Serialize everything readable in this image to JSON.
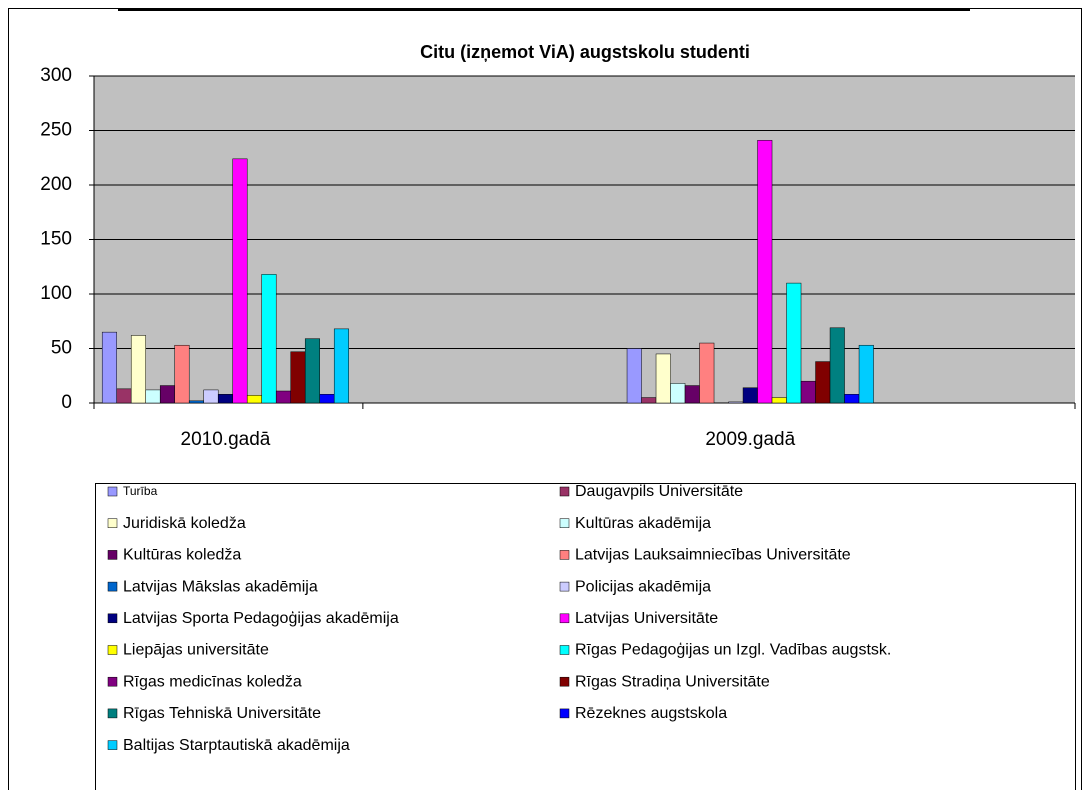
{
  "chart_data": {
    "type": "bar",
    "title": "Citu (izņemot ViA) augstskolu studenti",
    "categories": [
      "2010.gadā",
      "2009.gadā"
    ],
    "ylim": [
      0,
      300
    ],
    "yticks": [
      0,
      50,
      100,
      150,
      200,
      250,
      300
    ],
    "grid": true,
    "series": [
      {
        "name": "Turība",
        "color": "#9999ff",
        "values": [
          65,
          50
        ]
      },
      {
        "name": "Daugavpils Universitāte",
        "color": "#993366",
        "values": [
          13,
          5
        ]
      },
      {
        "name": "Juridiskā koledža",
        "color": "#ffffcc",
        "values": [
          62,
          45
        ]
      },
      {
        "name": "Kultūras akadēmija",
        "color": "#ccffff",
        "values": [
          12,
          18
        ]
      },
      {
        "name": "Kultūras koledža",
        "color": "#660066",
        "values": [
          16,
          16
        ]
      },
      {
        "name": "Latvijas Lauksaimniecības Universitāte",
        "color": "#ff8080",
        "values": [
          53,
          55
        ]
      },
      {
        "name": "Latvijas Mākslas akadēmija",
        "color": "#0066cc",
        "values": [
          2,
          0
        ]
      },
      {
        "name": "Policijas akadēmija",
        "color": "#ccccff",
        "values": [
          12,
          1
        ]
      },
      {
        "name": "Latvijas Sporta Pedagoģijas akadēmija",
        "color": "#000080",
        "values": [
          8,
          14
        ]
      },
      {
        "name": "Latvijas Universitāte",
        "color": "#ff00ff",
        "values": [
          224,
          241
        ]
      },
      {
        "name": "Liepājas universitāte",
        "color": "#ffff00",
        "values": [
          7,
          5
        ]
      },
      {
        "name": "Rīgas Pedagoģijas un Izgl. Vadības augstsk.",
        "color": "#00ffff",
        "values": [
          118,
          110
        ]
      },
      {
        "name": "Rīgas medicīnas koledža",
        "color": "#800080",
        "values": [
          11,
          20
        ]
      },
      {
        "name": "Rīgas Stradiņa Universitāte",
        "color": "#800000",
        "values": [
          47,
          38
        ]
      },
      {
        "name": "Rīgas Tehniskā Universitāte",
        "color": "#008080",
        "values": [
          59,
          69
        ]
      },
      {
        "name": "Rēzeknes augstskola",
        "color": "#0000ff",
        "values": [
          8,
          8
        ]
      },
      {
        "name": "Baltijas Starptautiskā akadēmija",
        "color": "#00ccff",
        "values": [
          68,
          53
        ]
      }
    ]
  }
}
